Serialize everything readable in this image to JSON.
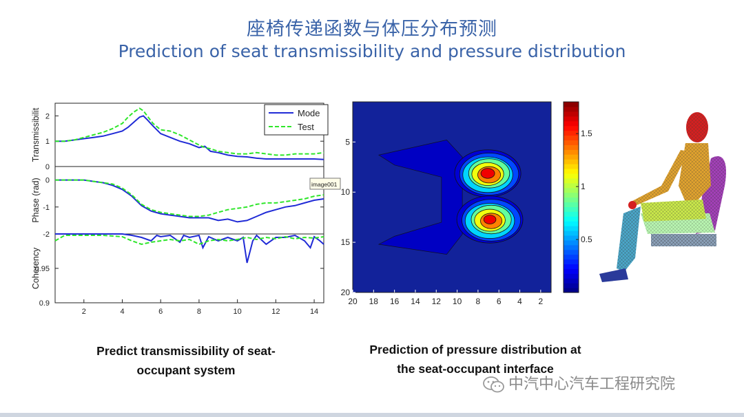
{
  "header": {
    "title_cn": "座椅传递函数与体压分布预测",
    "title_en": "Prediction of seat transmissibility and pressure distribution"
  },
  "captions": {
    "left_line1": "Predict transmissibility of seat-",
    "left_line2": "occupant system",
    "right_line1": "Prediction of pressure distribution at",
    "right_line2": "the seat-occupant interface"
  },
  "watermark": {
    "text": "中汽中心汽车工程研究院",
    "icon": "wechat-icon"
  },
  "tooltip": {
    "text": "image001"
  },
  "colors": {
    "title": "#3a63a8",
    "model": "#1f2ad6",
    "test": "#2ee62a",
    "contour_background": "#12229a"
  },
  "chart_data": [
    {
      "type": "line",
      "panel": "transmissibility",
      "ylabel": "Transmissibilit",
      "ylim": [
        0,
        2.5
      ],
      "yticks": [
        "0",
        "1",
        "2"
      ],
      "legend": {
        "placement": "top-right",
        "entries": [
          "Mode",
          "Test"
        ]
      },
      "series": [
        {
          "name": "Mode",
          "style": "solid",
          "x": [
            0.5,
            1,
            1.5,
            2,
            2.5,
            3,
            3.5,
            4,
            4.3,
            4.6,
            4.9,
            5.1,
            5.3,
            5.6,
            6,
            6.5,
            7,
            7.5,
            8,
            8.3,
            8.6,
            9,
            9.5,
            10,
            10.5,
            11,
            11.5,
            12,
            12.5,
            13,
            13.5,
            14,
            14.5
          ],
          "y": [
            1.0,
            1.0,
            1.05,
            1.1,
            1.15,
            1.2,
            1.3,
            1.4,
            1.55,
            1.75,
            1.95,
            2.0,
            1.85,
            1.6,
            1.3,
            1.15,
            1.0,
            0.9,
            0.75,
            0.8,
            0.6,
            0.55,
            0.45,
            0.4,
            0.38,
            0.33,
            0.3,
            0.3,
            0.3,
            0.3,
            0.3,
            0.3,
            0.28
          ]
        },
        {
          "name": "Test",
          "style": "dashed",
          "x": [
            0.5,
            1,
            1.5,
            2,
            2.5,
            3,
            3.5,
            4,
            4.3,
            4.6,
            4.9,
            5.1,
            5.3,
            5.6,
            6,
            6.5,
            7,
            7.5,
            8,
            8.3,
            8.6,
            9,
            9.5,
            10,
            10.5,
            11,
            11.5,
            12,
            12.5,
            13,
            13.5,
            14,
            14.5
          ],
          "y": [
            1.0,
            1.0,
            1.05,
            1.15,
            1.25,
            1.35,
            1.5,
            1.7,
            1.95,
            2.15,
            2.3,
            2.2,
            2.0,
            1.7,
            1.45,
            1.4,
            1.25,
            1.05,
            0.85,
            0.75,
            0.7,
            0.6,
            0.55,
            0.5,
            0.5,
            0.55,
            0.5,
            0.45,
            0.45,
            0.5,
            0.5,
            0.5,
            0.55
          ]
        }
      ]
    },
    {
      "type": "line",
      "panel": "phase",
      "ylabel": "Phase (rad)",
      "ylim": [
        -2,
        0.5
      ],
      "yticks": [
        "0",
        "-1",
        "-2"
      ],
      "series": [
        {
          "name": "Mode",
          "style": "solid",
          "x": [
            0.5,
            1,
            1.5,
            2,
            2.5,
            3,
            3.5,
            4,
            4.5,
            5,
            5.5,
            6,
            6.5,
            7,
            7.5,
            8,
            8.5,
            9,
            9.5,
            10,
            10.5,
            11,
            11.5,
            12,
            12.5,
            13,
            13.5,
            14,
            14.5
          ],
          "y": [
            0.0,
            0.0,
            0.0,
            0.0,
            -0.05,
            -0.1,
            -0.2,
            -0.35,
            -0.6,
            -0.95,
            -1.15,
            -1.25,
            -1.3,
            -1.35,
            -1.4,
            -1.4,
            -1.4,
            -1.5,
            -1.45,
            -1.55,
            -1.5,
            -1.35,
            -1.2,
            -1.1,
            -1.0,
            -0.95,
            -0.85,
            -0.75,
            -0.7
          ]
        },
        {
          "name": "Test",
          "style": "dashed",
          "x": [
            0.5,
            1,
            1.5,
            2,
            2.5,
            3,
            3.5,
            4,
            4.5,
            5,
            5.5,
            6,
            6.5,
            7,
            7.5,
            8,
            8.5,
            9,
            9.5,
            10,
            10.5,
            11,
            11.5,
            12,
            12.5,
            13,
            13.5,
            14,
            14.5
          ],
          "y": [
            0.0,
            0.0,
            0.0,
            0.0,
            -0.05,
            -0.1,
            -0.15,
            -0.3,
            -0.55,
            -0.9,
            -1.1,
            -1.2,
            -1.25,
            -1.3,
            -1.35,
            -1.35,
            -1.3,
            -1.2,
            -1.1,
            -1.05,
            -1.0,
            -0.9,
            -0.85,
            -0.85,
            -0.8,
            -0.75,
            -0.7,
            -0.6,
            -0.55
          ]
        }
      ]
    },
    {
      "type": "line",
      "panel": "coherency",
      "ylabel": "Coherency",
      "ylim": [
        0.9,
        1.0
      ],
      "yticks": [
        "0.95",
        "0.9"
      ],
      "xticks": [
        "2",
        "4",
        "6",
        "8",
        "10",
        "12",
        "14"
      ],
      "xlim": [
        0.5,
        14.5
      ],
      "series": [
        {
          "name": "Mode",
          "style": "solid",
          "x": [
            0.5,
            1,
            2,
            3,
            4,
            4.5,
            5,
            5.5,
            5.8,
            6,
            6.5,
            7,
            7.2,
            7.5,
            8,
            8.2,
            8.5,
            9,
            9.5,
            10,
            10.3,
            10.5,
            10.8,
            11,
            11.5,
            12,
            12.5,
            13,
            13.5,
            13.8,
            14,
            14.3,
            14.5
          ],
          "y": [
            1.0,
            1.0,
            1.0,
            1.0,
            1.0,
            0.998,
            0.995,
            0.99,
            0.998,
            0.996,
            0.998,
            0.988,
            0.998,
            0.995,
            0.998,
            0.98,
            0.996,
            0.99,
            0.995,
            0.99,
            0.995,
            0.958,
            0.99,
            0.998,
            0.985,
            0.995,
            0.995,
            0.998,
            0.99,
            0.98,
            0.996,
            0.99,
            0.985
          ]
        },
        {
          "name": "Test",
          "style": "dashed",
          "x": [
            0.5,
            1,
            2,
            3,
            4,
            4.5,
            5,
            5.5,
            6,
            6.5,
            7,
            7.5,
            8,
            8.5,
            9,
            9.5,
            10,
            10.5,
            11,
            11.5,
            12,
            12.5,
            13,
            13.5,
            14,
            14.5
          ],
          "y": [
            0.99,
            0.998,
            0.998,
            0.998,
            0.996,
            0.99,
            0.985,
            0.988,
            0.99,
            0.992,
            0.99,
            0.992,
            0.985,
            0.99,
            0.992,
            0.99,
            0.992,
            0.995,
            0.992,
            0.995,
            0.993,
            0.996,
            0.993,
            0.995,
            0.994,
            0.996
          ]
        }
      ]
    },
    {
      "type": "heatmap",
      "panel": "pressure-contour",
      "xticks": [
        "20",
        "18",
        "16",
        "14",
        "12",
        "10",
        "8",
        "6",
        "4",
        "2"
      ],
      "yticks": [
        "5",
        "10",
        "15",
        "20"
      ],
      "xlim": [
        20,
        1
      ],
      "ylim": [
        1,
        20
      ],
      "colorbar": {
        "ticks": [
          "0.5",
          "1",
          "1.5"
        ],
        "range": [
          0,
          1.8
        ]
      },
      "hotspots": [
        {
          "x": 7.0,
          "y": 8.2,
          "peak": 1.75
        },
        {
          "x": 6.8,
          "y": 12.8,
          "peak": 1.7
        }
      ],
      "levels": [
        0.15,
        0.35,
        0.6,
        0.85,
        1.1,
        1.35,
        1.6
      ]
    }
  ]
}
